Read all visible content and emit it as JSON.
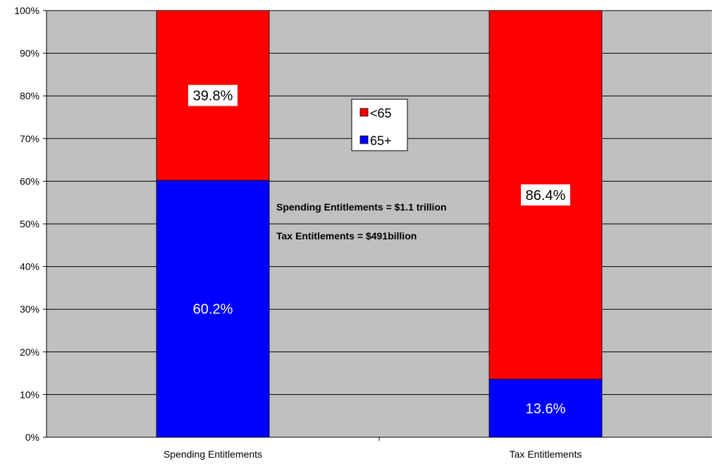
{
  "chart_data": {
    "type": "bar",
    "stacked": true,
    "percent_stacked": true,
    "categories": [
      "Spending Entitlements",
      "Tax Entitlements"
    ],
    "series": [
      {
        "name": "65+",
        "values": [
          60.2,
          13.6
        ],
        "labels": [
          "60.2%",
          "13.6%"
        ],
        "color": "#0000ff"
      },
      {
        "name": "<65",
        "values": [
          39.8,
          86.4
        ],
        "labels": [
          "39.8%",
          "86.4%"
        ],
        "color": "#ff0000"
      }
    ],
    "y_ticks": [
      "0%",
      "10%",
      "20%",
      "30%",
      "40%",
      "50%",
      "60%",
      "70%",
      "80%",
      "90%",
      "100%"
    ],
    "ylim": [
      0,
      100
    ],
    "grid": true,
    "plot_background": "#c0c0c0",
    "legend": {
      "placement": "center",
      "entries": [
        {
          "name": "<65",
          "color": "#ff0000"
        },
        {
          "name": "65+",
          "color": "#0000ff"
        }
      ]
    },
    "annotations": [
      "Spending Entitlements = $1.1 trillion",
      "Tax Entitlements = $491billion"
    ]
  }
}
